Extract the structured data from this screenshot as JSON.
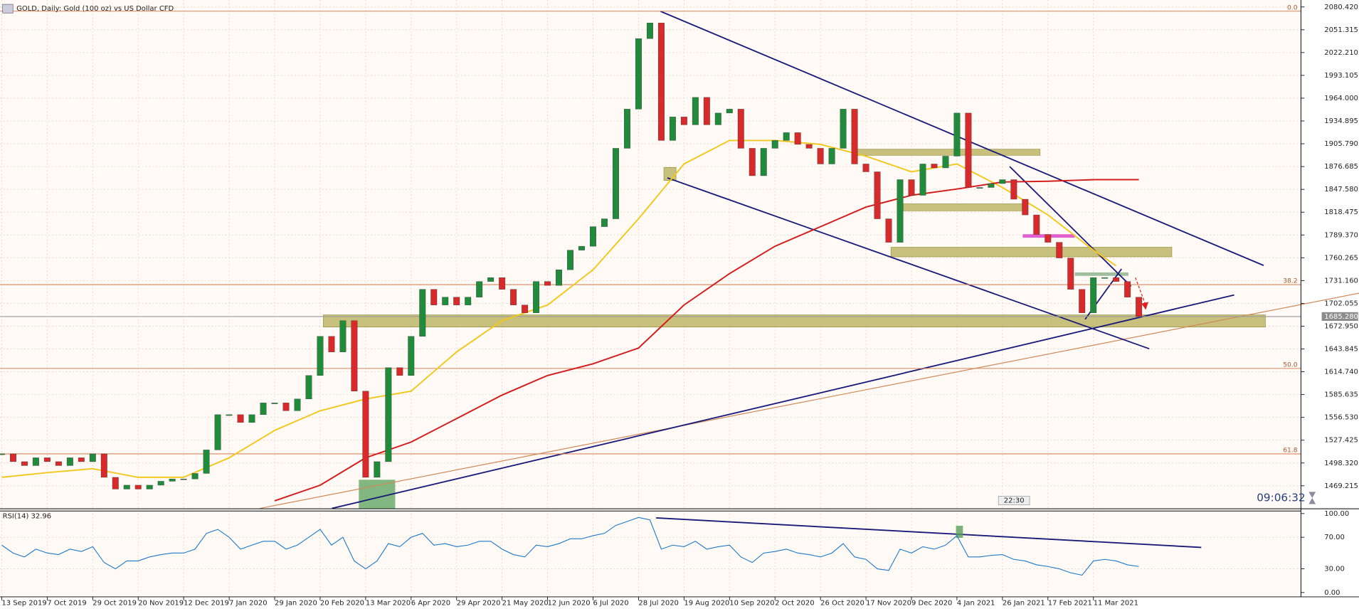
{
  "chart_data": [
    {
      "type": "candlestick",
      "title": "GOLD, Daily:  Gold (100 oz) vs US Dollar CFD",
      "x": [
        0,
        4,
        8,
        12,
        16,
        20,
        24,
        28,
        32,
        36,
        40,
        44,
        48,
        52,
        56,
        60,
        64,
        68,
        72,
        76,
        80,
        84,
        88,
        92,
        96,
        100,
        104,
        108,
        112,
        116,
        120,
        124,
        128,
        132,
        136,
        140,
        144,
        148,
        152,
        156,
        160,
        164,
        168,
        172,
        176,
        180,
        184,
        188,
        192,
        196,
        200,
        204,
        208,
        212,
        216,
        220,
        224,
        228,
        232,
        236,
        240,
        244,
        248,
        252,
        256,
        260,
        264,
        268,
        272,
        276,
        280,
        284,
        288,
        292,
        296,
        300,
        304,
        308,
        312,
        316,
        320,
        324,
        328,
        332,
        336,
        340,
        344,
        348,
        352,
        356,
        360,
        364,
        368,
        372,
        376,
        380,
        384,
        388,
        392,
        396,
        400
      ],
      "close": [
        1510,
        1500,
        1495,
        1505,
        1500,
        1495,
        1505,
        1500,
        1510,
        1480,
        1465,
        1470,
        1465,
        1470,
        1475,
        1478,
        1478,
        1485,
        1515,
        1560,
        1560,
        1550,
        1560,
        1575,
        1575,
        1565,
        1580,
        1610,
        1660,
        1640,
        1680,
        1590,
        1480,
        1500,
        1620,
        1610,
        1660,
        1720,
        1700,
        1710,
        1700,
        1710,
        1730,
        1735,
        1720,
        1700,
        1690,
        1730,
        1725,
        1745,
        1770,
        1775,
        1800,
        1810,
        1900,
        1950,
        2040,
        2060,
        1910,
        1940,
        1930,
        1965,
        1930,
        1945,
        1950,
        1900,
        1865,
        1900,
        1910,
        1920,
        1905,
        1900,
        1880,
        1900,
        1950,
        1880,
        1870,
        1810,
        1780,
        1860,
        1840,
        1880,
        1875,
        1890,
        1945,
        1850,
        1850,
        1855,
        1860,
        1835,
        1815,
        1790,
        1780,
        1760,
        1720,
        1690,
        1735,
        1735,
        1730,
        1710,
        1685.28
      ],
      "up_color": "#1f8b3b",
      "down_color": "#d82a2a",
      "series": [
        {
          "color": "#f2c81e",
          "x": [
            0,
            16,
            32,
            48,
            64,
            80,
            96,
            112,
            128,
            144,
            160,
            176,
            192,
            208,
            224,
            240,
            256,
            272,
            288,
            304,
            320,
            336,
            352,
            368,
            384,
            392
          ],
          "values": [
            1480,
            1486,
            1491,
            1480,
            1480,
            1505,
            1540,
            1565,
            1580,
            1590,
            1640,
            1680,
            1700,
            1745,
            1810,
            1880,
            1910,
            1910,
            1905,
            1890,
            1870,
            1880,
            1850,
            1815,
            1770,
            1750
          ]
        },
        {
          "color": "#d41c1c",
          "x": [
            96,
            112,
            128,
            144,
            160,
            176,
            192,
            208,
            224,
            240,
            256,
            272,
            288,
            304,
            320,
            336,
            352,
            368,
            384,
            400
          ],
          "values": [
            1450,
            1470,
            1505,
            1525,
            1555,
            1585,
            1610,
            1625,
            1645,
            1700,
            1740,
            1775,
            1800,
            1825,
            1840,
            1848,
            1857,
            1858,
            1860,
            1860
          ]
        }
      ],
      "xlim": [
        0,
        457
      ],
      "xticks": [
        {
          "value": 0,
          "label": "13 Sep 2019"
        },
        {
          "value": 16,
          "label": "7 Oct 2019"
        },
        {
          "value": 32,
          "label": "29 Oct 2019"
        },
        {
          "value": 48,
          "label": "20 Nov 2019"
        },
        {
          "value": 64,
          "label": "12 Dec 2019"
        },
        {
          "value": 80,
          "label": "7 Jan 2020"
        },
        {
          "value": 96,
          "label": "29 Jan 2020"
        },
        {
          "value": 112,
          "label": "20 Feb 2020"
        },
        {
          "value": 128,
          "label": "13 Mar 2020"
        },
        {
          "value": 144,
          "label": "6 Apr 2020"
        },
        {
          "value": 160,
          "label": "29 Apr 2020"
        },
        {
          "value": 176,
          "label": "21 May 2020"
        },
        {
          "value": 192,
          "label": "12 Jun 2020"
        },
        {
          "value": 208,
          "label": "6 Jul 2020"
        },
        {
          "value": 224,
          "label": "28 Jul 2020"
        },
        {
          "value": 240,
          "label": "19 Aug 2020"
        },
        {
          "value": 256,
          "label": "10 Sep 2020"
        },
        {
          "value": 272,
          "label": "2 Oct 2020"
        },
        {
          "value": 288,
          "label": "26 Oct 2020"
        },
        {
          "value": 304,
          "label": "17 Nov 2020"
        },
        {
          "value": 320,
          "label": "9 Dec 2020"
        },
        {
          "value": 336,
          "label": "4 Jan 2021"
        },
        {
          "value": 352,
          "label": "26 Jan 2021"
        },
        {
          "value": 368,
          "label": "17 Feb 2021"
        },
        {
          "value": 384,
          "label": "11 Mar 2021"
        }
      ],
      "ylim": [
        1440.4,
        2089.3
      ],
      "yticks": [
        {
          "value": 2080.42,
          "label": "2080.420"
        },
        {
          "value": 2051.315,
          "label": "2051.315"
        },
        {
          "value": 2022.21,
          "label": "2022.210"
        },
        {
          "value": 1993.105,
          "label": "1993.105"
        },
        {
          "value": 1964,
          "label": "1964.000"
        },
        {
          "value": 1934.895,
          "label": "1934.895"
        },
        {
          "value": 1905.79,
          "label": "1905.790"
        },
        {
          "value": 1876.685,
          "label": "1876.685"
        },
        {
          "value": 1847.58,
          "label": "1847.580"
        },
        {
          "value": 1818.475,
          "label": "1818.475"
        },
        {
          "value": 1789.37,
          "label": "1789.370"
        },
        {
          "value": 1760.265,
          "label": "1760.265"
        },
        {
          "value": 1731.16,
          "label": "1731.160"
        },
        {
          "value": 1702.055,
          "label": "1702.055"
        },
        {
          "value": 1672.95,
          "label": "1672.950"
        },
        {
          "value": 1643.845,
          "label": "1643.845"
        },
        {
          "value": 1614.74,
          "label": "1614.740"
        },
        {
          "value": 1585.635,
          "label": "1585.635"
        },
        {
          "value": 1556.53,
          "label": "1556.530"
        },
        {
          "value": 1527.425,
          "label": "1527.425"
        },
        {
          "value": 1498.32,
          "label": "1498.320"
        },
        {
          "value": 1469.215,
          "label": "1469.215"
        }
      ],
      "grid": true,
      "last_price": {
        "value": 1685.28,
        "label": "1685.280"
      },
      "fib_levels": [
        {
          "label": "0.0",
          "price": 2075
        },
        {
          "label": "38.2",
          "price": 1726
        },
        {
          "label": "50.0",
          "price": 1619
        },
        {
          "label": "61.8",
          "price": 1510
        }
      ],
      "fib_color": "#d9855a"
    },
    {
      "type": "line",
      "title": "RSI(14) 32.96",
      "x": [
        0,
        4,
        8,
        12,
        16,
        20,
        24,
        28,
        32,
        36,
        40,
        44,
        48,
        52,
        56,
        60,
        64,
        68,
        72,
        76,
        80,
        84,
        88,
        92,
        96,
        100,
        104,
        108,
        112,
        116,
        120,
        124,
        128,
        132,
        136,
        140,
        144,
        148,
        152,
        156,
        160,
        164,
        168,
        172,
        176,
        180,
        184,
        188,
        192,
        196,
        200,
        204,
        208,
        212,
        216,
        220,
        224,
        228,
        232,
        236,
        240,
        244,
        248,
        252,
        256,
        260,
        264,
        268,
        272,
        276,
        280,
        284,
        288,
        292,
        296,
        300,
        304,
        308,
        312,
        316,
        320,
        324,
        328,
        332,
        336,
        340,
        344,
        348,
        352,
        356,
        360,
        364,
        368,
        372,
        376,
        380,
        384,
        388,
        392,
        396,
        400
      ],
      "values": [
        60,
        50,
        45,
        55,
        50,
        48,
        55,
        52,
        58,
        38,
        30,
        40,
        40,
        45,
        48,
        50,
        50,
        55,
        75,
        80,
        70,
        55,
        60,
        65,
        65,
        55,
        60,
        70,
        80,
        60,
        70,
        40,
        30,
        40,
        62,
        58,
        70,
        75,
        60,
        62,
        58,
        60,
        65,
        65,
        55,
        48,
        45,
        60,
        58,
        62,
        68,
        68,
        72,
        75,
        85,
        90,
        95,
        92,
        55,
        60,
        58,
        65,
        55,
        58,
        60,
        45,
        38,
        50,
        52,
        55,
        50,
        48,
        45,
        50,
        62,
        45,
        42,
        30,
        28,
        55,
        50,
        58,
        55,
        60,
        72,
        45,
        45,
        47,
        48,
        42,
        40,
        35,
        33,
        30,
        25,
        22,
        40,
        42,
        40,
        35,
        33
      ],
      "color": "#1e78c8",
      "xlim": [
        0,
        457
      ],
      "ylim": [
        0,
        100
      ],
      "yticks": [
        {
          "value": 100,
          "label": "100.00"
        },
        {
          "value": 70,
          "label": "70.00"
        },
        {
          "value": 30,
          "label": "30.00"
        },
        {
          "value": 0,
          "label": "0.00"
        }
      ]
    }
  ],
  "status": {
    "countdown": "09:06:32",
    "time_marker": "22:30"
  }
}
